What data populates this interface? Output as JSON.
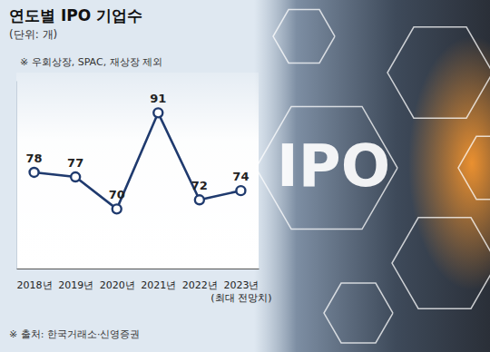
{
  "chart_data": {
    "type": "line",
    "title": "연도별 IPO 기업수",
    "subtitle": "(단위: 개)",
    "note": "※ 우회상장, SPAC, 재상장 제외",
    "source": "※ 출처: 한국거래소·신영증권",
    "image_text": "IPO",
    "categories": [
      "2018년",
      "2019년",
      "2020년",
      "2021년",
      "2022년",
      "2023년 (최대 전망치)"
    ],
    "values": [
      78,
      77,
      70,
      91,
      72,
      74
    ],
    "color": "#1f3a6e",
    "marker": "circle",
    "line_style": "solid",
    "ylim": [
      57,
      98
    ],
    "data_labels": true,
    "tick_labels": "x",
    "grid": false
  }
}
